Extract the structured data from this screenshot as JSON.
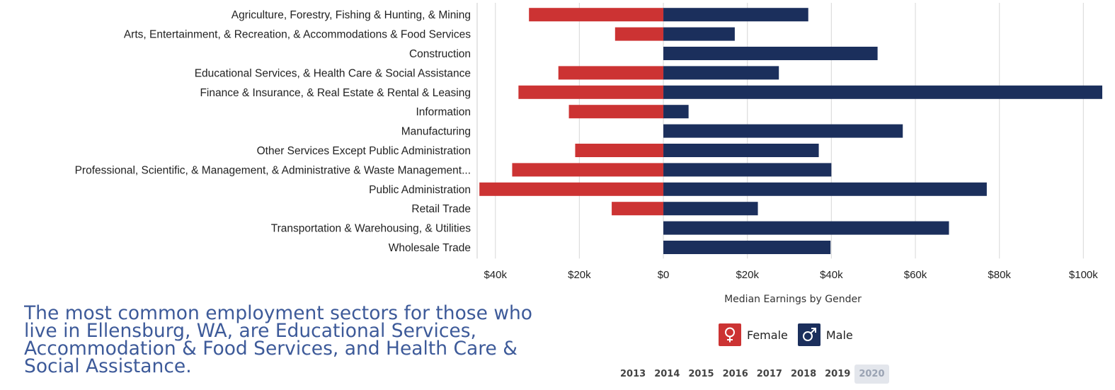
{
  "chart_data": {
    "type": "bar",
    "orientation": "horizontal-diverging",
    "xlabel": "Median Earnings by Gender",
    "xlim": [
      -44000,
      105000
    ],
    "x_ticks": [
      -40000,
      -20000,
      0,
      20000,
      40000,
      60000,
      80000,
      100000
    ],
    "x_tick_labels": [
      "$40k",
      "$20k",
      "$0",
      "$20k",
      "$40k",
      "$60k",
      "$80k",
      "$100k"
    ],
    "grid": "vertical",
    "categories": [
      "Agriculture, Forestry, Fishing & Hunting, & Mining",
      "Arts, Entertainment, & Recreation, & Accommodations & Food Services",
      "Construction",
      "Educational Services, & Health Care & Social Assistance",
      "Finance & Insurance, & Real Estate & Rental & Leasing",
      "Information",
      "Manufacturing",
      "Other Services Except Public Administration",
      "Professional, Scientific, & Management, & Administrative & Waste Management...",
      "Public Administration",
      "Retail Trade",
      "Transportation & Warehousing, & Utilities",
      "Wholesale Trade"
    ],
    "series": [
      {
        "name": "Female",
        "color": "#cc3333",
        "values": [
          32000,
          11500,
          0,
          25000,
          34500,
          22500,
          0,
          21000,
          36000,
          43800,
          12300,
          0,
          0
        ]
      },
      {
        "name": "Male",
        "color": "#1b2f5c",
        "values": [
          34500,
          17000,
          51000,
          27500,
          104500,
          6000,
          57000,
          37000,
          40000,
          77000,
          22500,
          68000,
          39800
        ]
      }
    ]
  },
  "legend": {
    "female_label": "Female",
    "male_label": "Male",
    "female_icon": "female-symbol-icon",
    "male_icon": "male-symbol-icon",
    "female_color": "#cc3333",
    "male_color": "#1b2f5c"
  },
  "years": {
    "options": [
      "2013",
      "2014",
      "2015",
      "2016",
      "2017",
      "2018",
      "2019",
      "2020"
    ],
    "selected": "2020"
  },
  "summary_text": "The most common employment sectors for those who live in Ellensburg, WA, are Educational Services, Accommodation & Food Services, and Health Care & Social Assistance."
}
